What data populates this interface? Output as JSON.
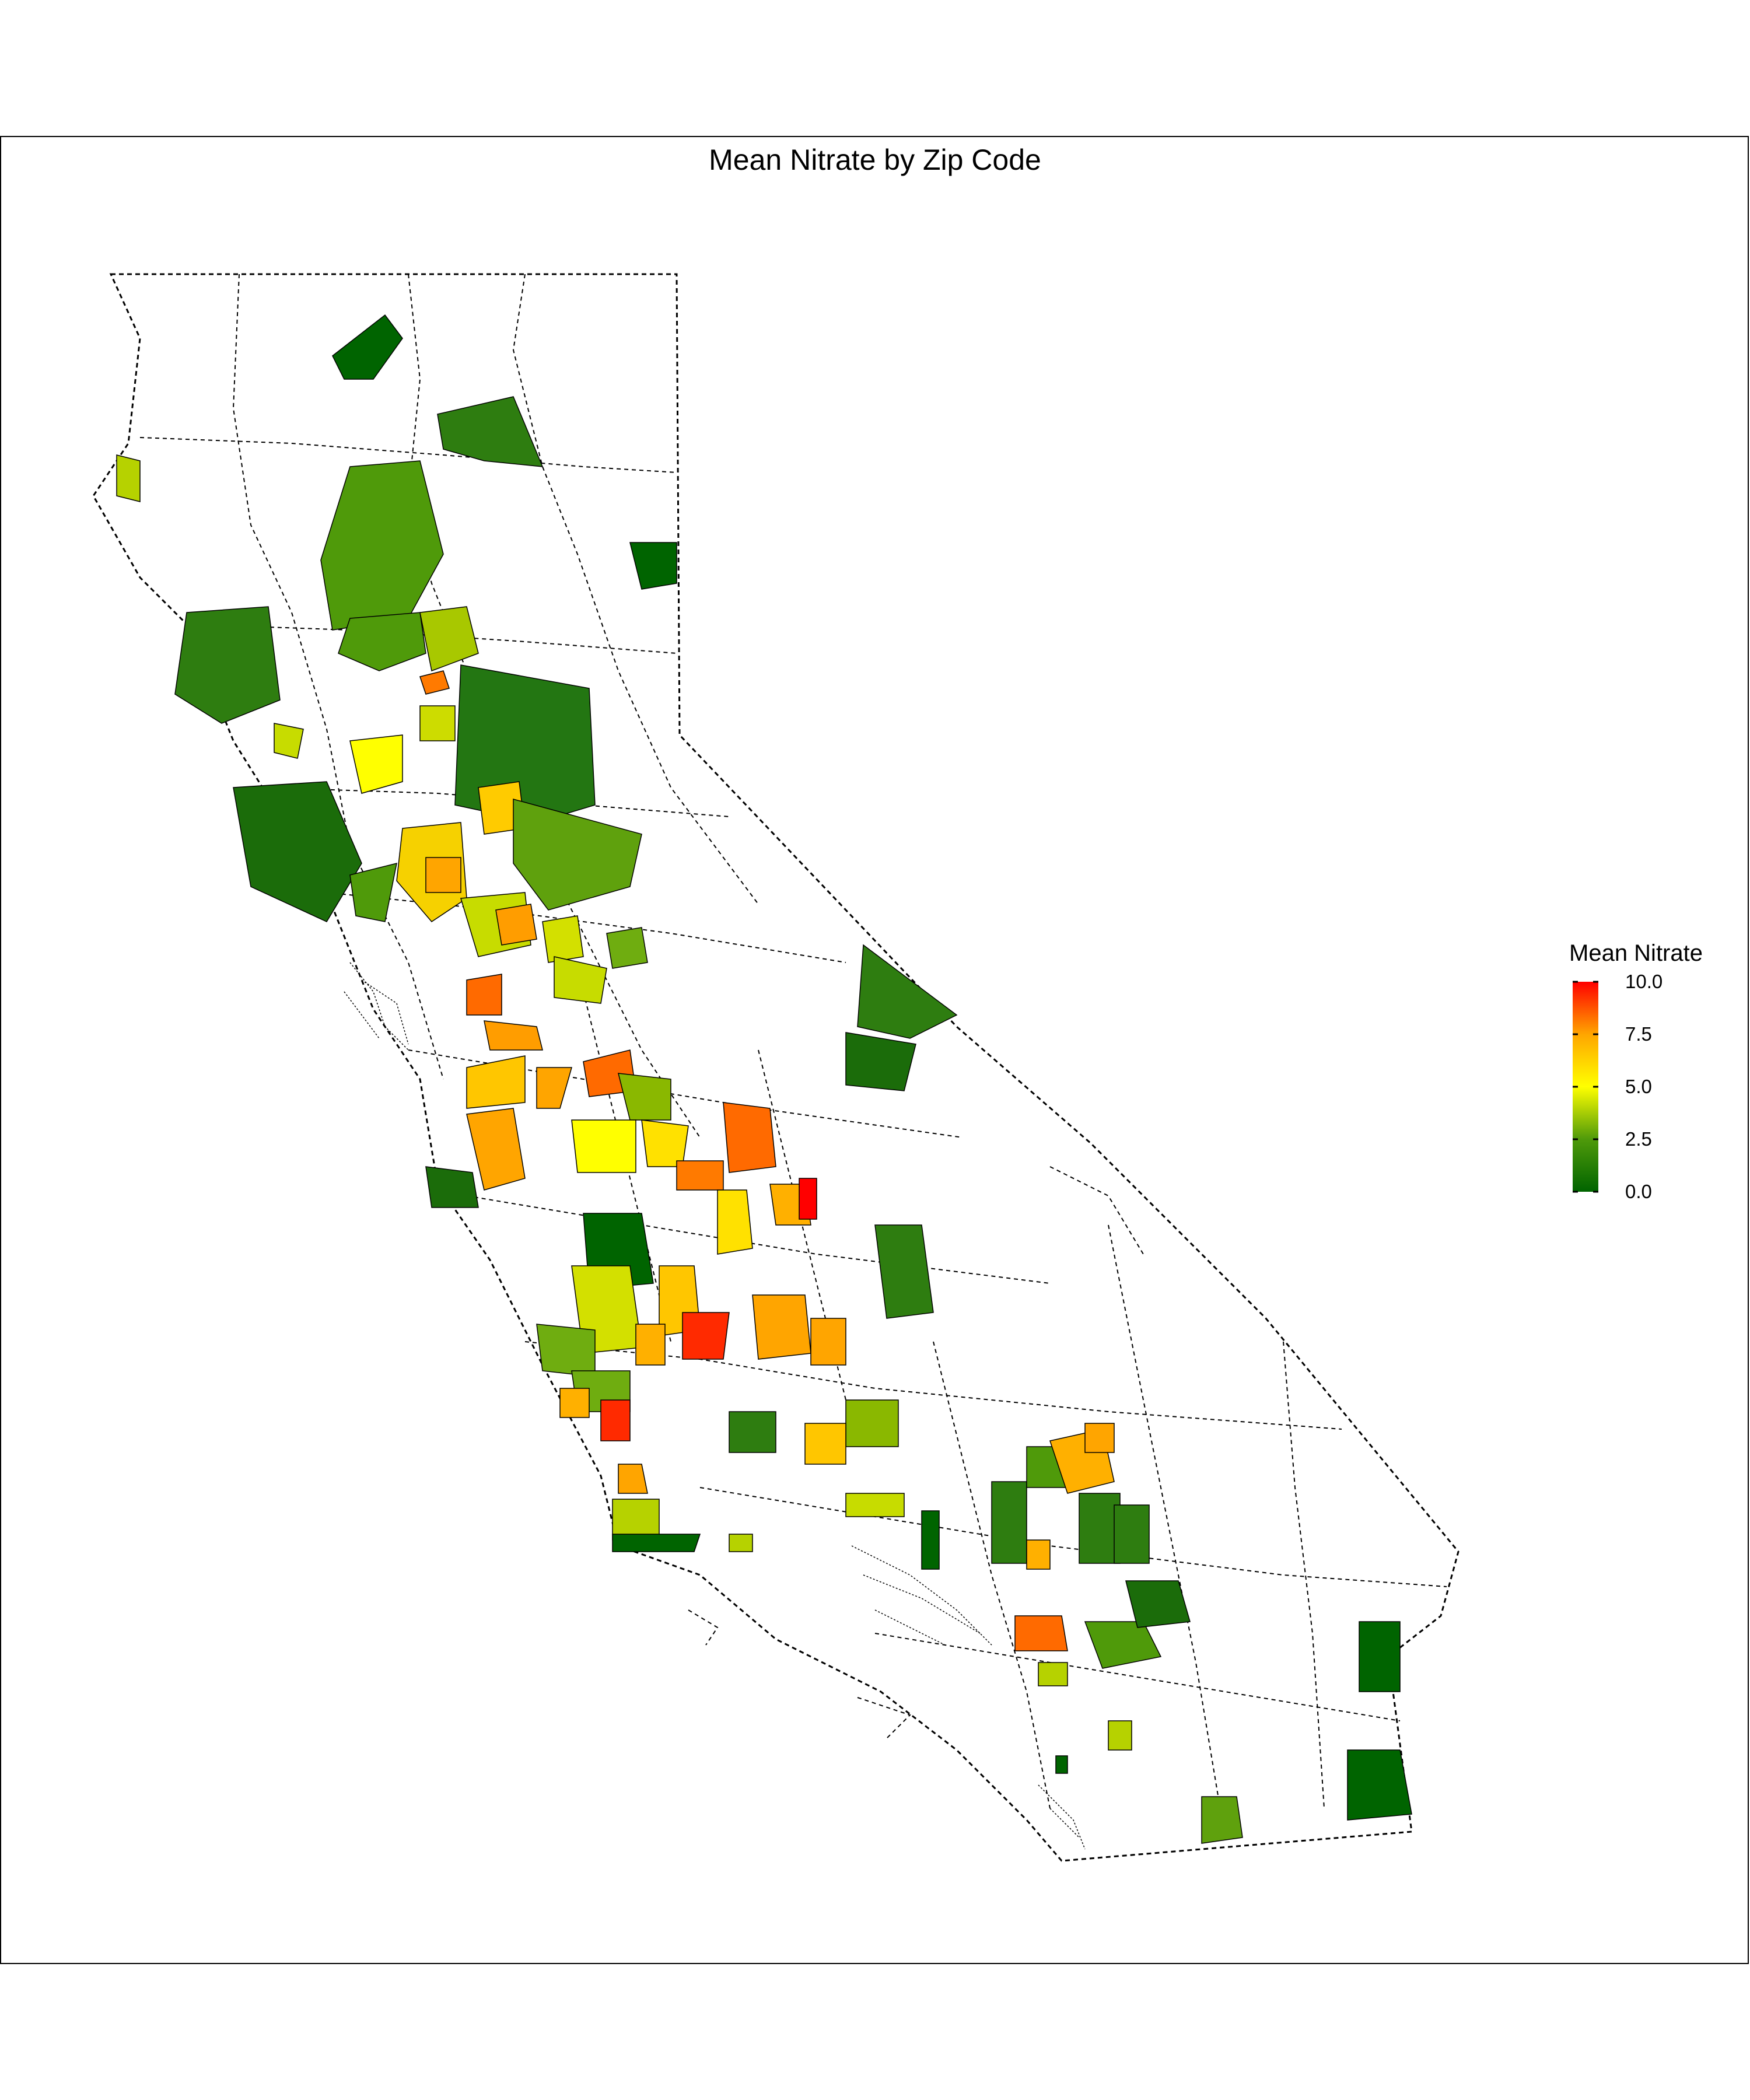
{
  "title": "Mean Nitrate by Zip Code",
  "legend": {
    "title": "Mean Nitrate",
    "min": 0.0,
    "max": 10.0,
    "ticks": [
      {
        "value": 0.0,
        "label": "0.0"
      },
      {
        "value": 2.5,
        "label": "2.5"
      },
      {
        "value": 5.0,
        "label": "5.0"
      },
      {
        "value": 7.5,
        "label": "7.5"
      },
      {
        "value": 10.0,
        "label": "10.0"
      }
    ],
    "colors": [
      "#006400",
      "#4f9a0a",
      "#ffff00",
      "#ffa500",
      "#ff0000"
    ]
  },
  "map": {
    "region": "California",
    "boundary_style": "dashed",
    "unit": "zip code"
  }
}
